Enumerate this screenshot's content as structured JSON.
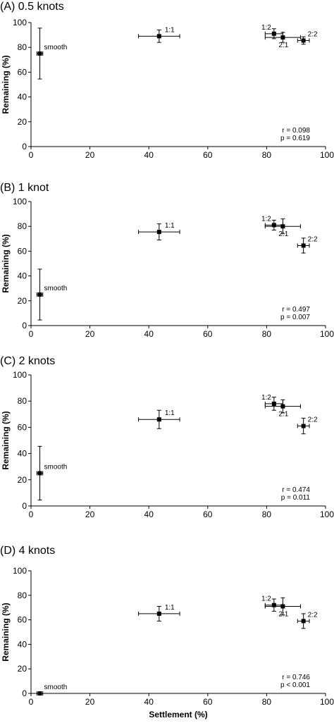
{
  "chart_data": [
    {
      "type": "scatter",
      "title": "(A) 0.5 knots",
      "ylabel": "Remaining (%)",
      "xlabel": "",
      "xlim": [
        0,
        100
      ],
      "ylim": [
        0,
        100
      ],
      "xticks": [
        "0",
        "20",
        "40",
        "60",
        "80",
        "100"
      ],
      "yticks": [
        "0",
        "20",
        "40",
        "60",
        "80",
        "100"
      ],
      "points": [
        {
          "label": "smooth",
          "x": 3,
          "y": 75,
          "xerr": 1,
          "yerr": 20.5
        },
        {
          "label": "1:1",
          "x": 43.5,
          "y": 89,
          "xerr": 7,
          "yerr": 5
        },
        {
          "label": "1:2",
          "x": 82.5,
          "y": 91,
          "xerr": 3,
          "yerr": 4
        },
        {
          "label": "2:1",
          "x": 85.5,
          "y": 88,
          "xerr": 6,
          "yerr": 4
        },
        {
          "label": "2:2",
          "x": 92.5,
          "y": 85.5,
          "xerr": 2,
          "yerr": 3
        }
      ],
      "stat_r": "r = 0.098",
      "stat_p": "p = 0.619"
    },
    {
      "type": "scatter",
      "title": "(B) 1 knot",
      "ylabel": "Remaining (%)",
      "xlabel": "",
      "xlim": [
        0,
        100
      ],
      "ylim": [
        0,
        100
      ],
      "xticks": [
        "0",
        "20",
        "40",
        "60",
        "80",
        "100"
      ],
      "yticks": [
        "0",
        "20",
        "40",
        "60",
        "80",
        "100"
      ],
      "points": [
        {
          "label": "smooth",
          "x": 3,
          "y": 25,
          "xerr": 1,
          "yerr": 20.5
        },
        {
          "label": "1:1",
          "x": 43.5,
          "y": 75.5,
          "xerr": 7,
          "yerr": 6.5
        },
        {
          "label": "1:2",
          "x": 82.5,
          "y": 81,
          "xerr": 3,
          "yerr": 4
        },
        {
          "label": "2:1",
          "x": 85.5,
          "y": 80,
          "xerr": 6,
          "yerr": 6
        },
        {
          "label": "2:2",
          "x": 92.5,
          "y": 64.5,
          "xerr": 2,
          "yerr": 6
        }
      ],
      "stat_r": "r = 0.497",
      "stat_p": "p = 0.007"
    },
    {
      "type": "scatter",
      "title": "(C) 2 knots",
      "ylabel": "Remaining (%)",
      "xlabel": "",
      "xlim": [
        0,
        100
      ],
      "ylim": [
        0,
        100
      ],
      "xticks": [
        "0",
        "20",
        "40",
        "60",
        "80",
        "100"
      ],
      "yticks": [
        "0",
        "20",
        "40",
        "60",
        "80",
        "100"
      ],
      "points": [
        {
          "label": "smooth",
          "x": 3,
          "y": 25,
          "xerr": 1,
          "yerr": 20.5
        },
        {
          "label": "1:1",
          "x": 43.5,
          "y": 66,
          "xerr": 7,
          "yerr": 7
        },
        {
          "label": "1:2",
          "x": 82.5,
          "y": 78,
          "xerr": 3,
          "yerr": 5
        },
        {
          "label": "2:1",
          "x": 85.5,
          "y": 76,
          "xerr": 6,
          "yerr": 5
        },
        {
          "label": "2:2",
          "x": 92.5,
          "y": 61,
          "xerr": 2,
          "yerr": 6
        }
      ],
      "stat_r": "r = 0.474",
      "stat_p": "p = 0.011"
    },
    {
      "type": "scatter",
      "title": "(D) 4 knots",
      "ylabel": "Remaining (%)",
      "xlabel": "Settlement (%)",
      "xlim": [
        0,
        100
      ],
      "ylim": [
        0,
        100
      ],
      "xticks": [
        "0",
        "20",
        "40",
        "60",
        "80",
        "100"
      ],
      "yticks": [
        "0",
        "20",
        "40",
        "60",
        "80",
        "100"
      ],
      "points": [
        {
          "label": "smooth",
          "x": 3,
          "y": 0,
          "xerr": 1,
          "yerr": 0
        },
        {
          "label": "1:1",
          "x": 43.5,
          "y": 65,
          "xerr": 7,
          "yerr": 6
        },
        {
          "label": "1:2",
          "x": 82.5,
          "y": 72,
          "xerr": 3,
          "yerr": 5
        },
        {
          "label": "2:1",
          "x": 85.5,
          "y": 71,
          "xerr": 6,
          "yerr": 7
        },
        {
          "label": "2:2",
          "x": 92.5,
          "y": 59,
          "xerr": 2,
          "yerr": 6
        }
      ],
      "stat_r": "r = 0.746",
      "stat_p": "p < 0.001"
    }
  ]
}
